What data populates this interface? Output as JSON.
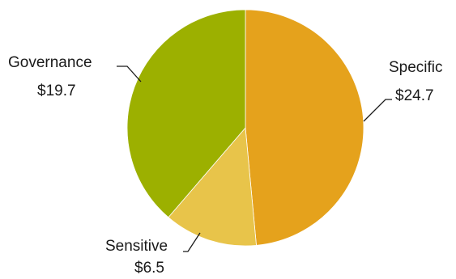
{
  "chart_data": {
    "type": "pie",
    "title": "",
    "slices": [
      {
        "label": "Specific",
        "value_label": "$24.7",
        "value": 24.7,
        "color": "#E5A21C"
      },
      {
        "label": "Sensitive",
        "value_label": "$6.5",
        "value": 6.5,
        "color": "#E8C44A"
      },
      {
        "label": "Governance",
        "value_label": "$19.7",
        "value": 19.7,
        "color": "#9CB000"
      }
    ],
    "start_angle": "12 o'clock",
    "direction": "clockwise",
    "legend": "none (data labels with leader lines)"
  }
}
